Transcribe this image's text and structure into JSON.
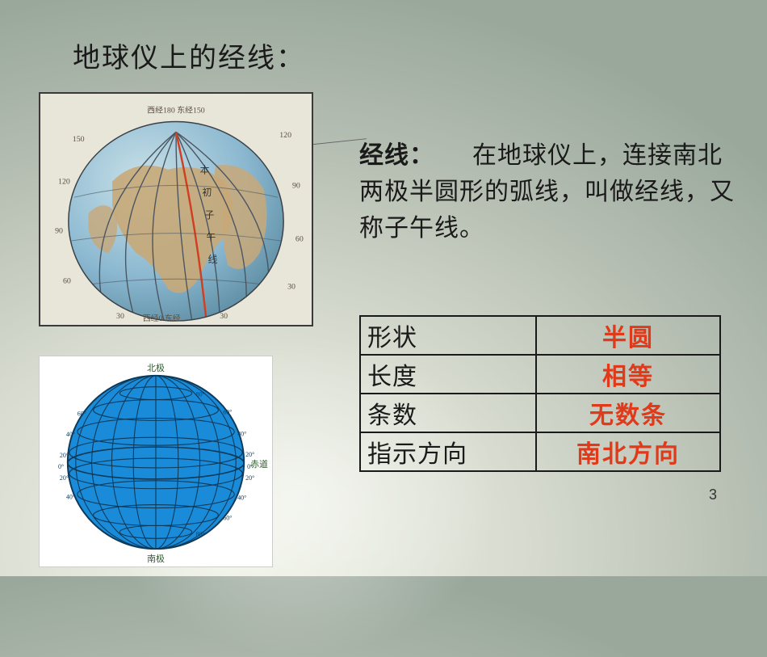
{
  "title": "地球仪上的经线：",
  "definition": {
    "term": "经线：",
    "body": "　　在地球仪上，连接南北两极半圆形的弧线，叫做经线，又称子午线。"
  },
  "table": {
    "rows": [
      {
        "key": "形状",
        "value": "半圆"
      },
      {
        "key": "长度",
        "value": "相等"
      },
      {
        "key": "条数",
        "value": "无数条"
      },
      {
        "key": "指示方向",
        "value": "南北方向"
      }
    ]
  },
  "globe1": {
    "ocean_color": "#8bb8d0",
    "land_color": "#c8a878",
    "line_color": "#4a5560",
    "highlight_line_color": "#d04020",
    "bg": "#e8e6d8",
    "labels": {
      "top_center": "西经180 东经150",
      "bottom": "西经0 东经",
      "left_nums": [
        "150",
        "120",
        "90",
        "60"
      ],
      "right_nums": [
        "120",
        "90",
        "60",
        "30"
      ],
      "bottom_nums": [
        "30",
        "30"
      ],
      "prime_meridian": "本初子午线"
    }
  },
  "globe2": {
    "fill": "#1a8bd8",
    "line": "#0d3a5a",
    "bg": "#ffffff",
    "north_label": "北极",
    "south_label": "南极",
    "equator_label": "赤道",
    "lat_labels_right": [
      "80°",
      "60°",
      "40°",
      "20°",
      "0°",
      "20°",
      "40°",
      "60°",
      "80°"
    ],
    "lat_labels_left": [
      "60°",
      "40°",
      "20°",
      "0°",
      "20°",
      "40°"
    ]
  },
  "page_number": "3",
  "colors": {
    "text": "#1a1a1a",
    "highlight": "#e03a1a",
    "border": "#1a1a1a"
  }
}
